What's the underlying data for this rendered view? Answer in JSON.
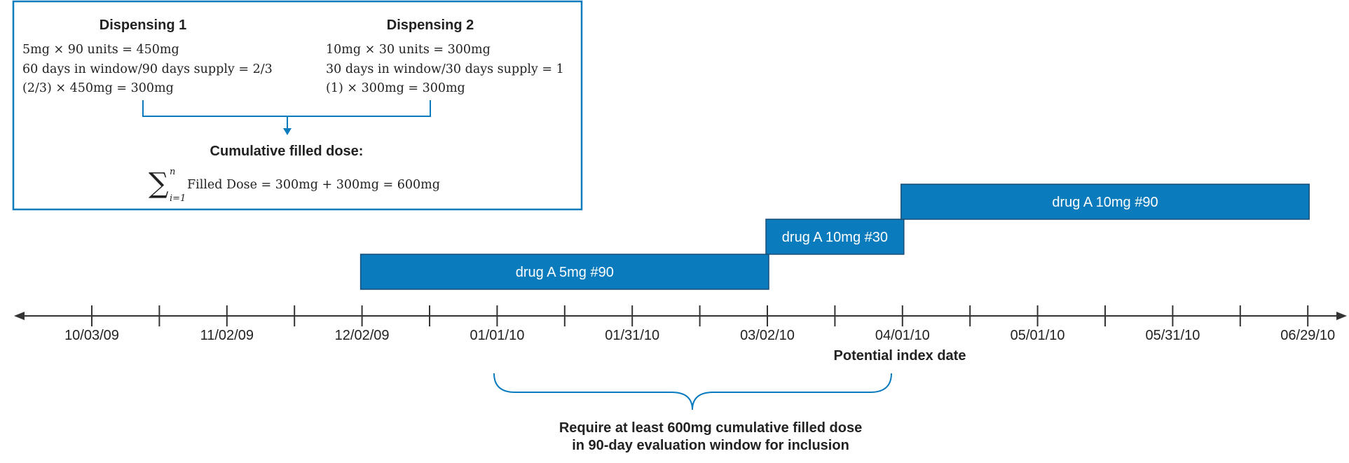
{
  "colors": {
    "accent": "#0a7bbd",
    "bar_fill": "#0a7bbd",
    "bar_border": "#1a4e78",
    "axis": "#333333",
    "text": "#222222"
  },
  "summary_box": {
    "dispensing_1": {
      "title": "Dispensing 1",
      "line_1": "5mg × 90 units = 450mg",
      "line_2": "60 days in window/90 days supply = 2/3",
      "line_3": "(2/3) × 450mg = 300mg"
    },
    "dispensing_2": {
      "title": "Dispensing 2",
      "line_1": "10mg × 30 units = 300mg",
      "line_2": "30 days in window/30 days supply = 1",
      "line_3": "(1) × 300mg = 300mg"
    },
    "cumulative_title": "Cumulative filled dose:",
    "formula": {
      "sum_symbol": "∑",
      "upper": "n",
      "lower": "i=1",
      "expression": "Filled Dose = 300mg + 300mg = 600mg"
    }
  },
  "timeline": {
    "tick_labels": [
      "10/03/09",
      "11/02/09",
      "12/02/09",
      "01/01/10",
      "01/31/10",
      "03/02/10",
      "04/01/10",
      "05/01/10",
      "05/31/10",
      "06/29/10"
    ],
    "index_date_label": "Potential index date",
    "bars": [
      {
        "label": "drug A 5mg #90",
        "start": "12/02/09",
        "end": "03/02/10"
      },
      {
        "label": "drug A 10mg #30",
        "start": "03/02/10",
        "end": "04/01/10"
      },
      {
        "label": "drug A 10mg #90",
        "start": "04/01/10",
        "end": "06/29/10"
      }
    ],
    "window_note_line_1": "Require at least 600mg cumulative filled dose",
    "window_note_line_2": "in 90-day evaluation window for inclusion"
  }
}
